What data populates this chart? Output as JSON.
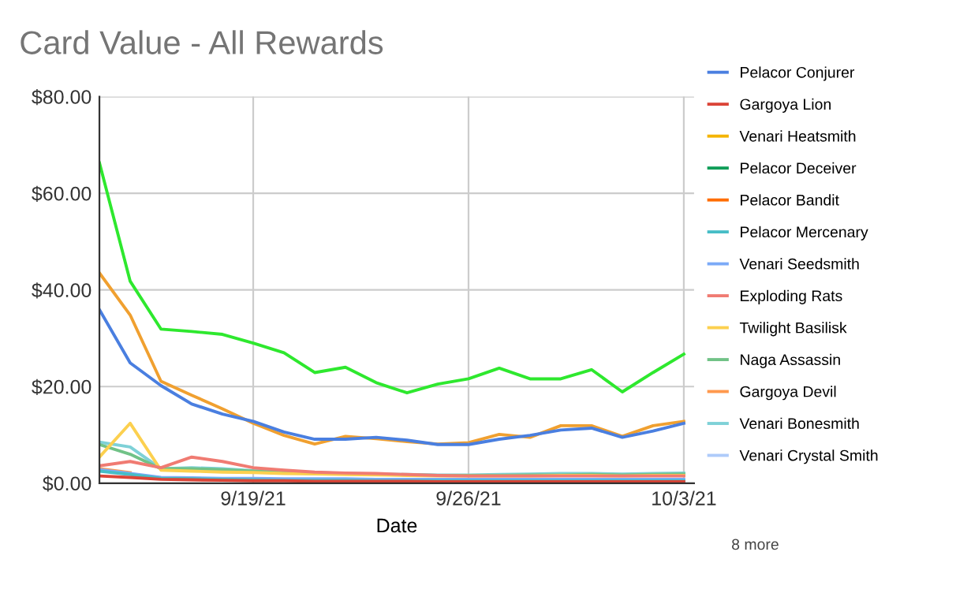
{
  "chart_data": {
    "type": "line",
    "title": "Card Value - All Rewards",
    "xlabel": "Date",
    "x": [
      "2021-09-14",
      "2021-09-15",
      "2021-09-16",
      "2021-09-17",
      "2021-09-18",
      "2021-09-19",
      "2021-09-20",
      "2021-09-21",
      "2021-09-22",
      "2021-09-23",
      "2021-09-24",
      "2021-09-25",
      "2021-09-26",
      "2021-09-27",
      "2021-09-28",
      "2021-09-29",
      "2021-09-30",
      "2021-10-01",
      "2021-10-02",
      "2021-10-03"
    ],
    "xlim": [
      "2021-09-14",
      "2021-10-03T08:00"
    ],
    "xticks": [
      {
        "value": "2021-09-19",
        "label": "9/19/21"
      },
      {
        "value": "2021-09-26",
        "label": "9/26/21"
      },
      {
        "value": "2021-10-03",
        "label": "10/3/21"
      }
    ],
    "ylim": [
      0,
      80
    ],
    "yticks": [
      {
        "value": 0,
        "label": "$0.00"
      },
      {
        "value": 20,
        "label": "$20.00"
      },
      {
        "value": 40,
        "label": "$40.00"
      },
      {
        "value": 60,
        "label": "$60.00"
      },
      {
        "value": 80,
        "label": "$80.00"
      }
    ],
    "grid": true,
    "legend": "right",
    "marker": "none",
    "line_style": "solid",
    "annotations": [
      "8 more"
    ],
    "series": [
      {
        "name": "Pelacor Conjurer",
        "color": "#4a7fe0",
        "values": [
          35.9,
          24.9,
          20.2,
          16.4,
          14.3,
          12.8,
          10.6,
          9.1,
          9.1,
          9.5,
          8.9,
          8.0,
          8.0,
          9.1,
          9.9,
          11.0,
          11.4,
          9.5,
          10.8,
          12.4
        ]
      },
      {
        "name": "Gargoya Lion",
        "color": "#db4437",
        "values": [
          1.5,
          1.2,
          0.8,
          0.7,
          0.6,
          0.5,
          0.5,
          0.4,
          0.4,
          0.4,
          0.4,
          0.3,
          0.3,
          0.3,
          0.3,
          0.3,
          0.3,
          0.3,
          0.3,
          0.3
        ]
      },
      {
        "name": "Venari Heatsmith",
        "color": "#f4b400",
        "values": [
          null,
          null,
          null,
          null,
          null,
          null,
          null,
          null,
          null,
          null,
          null,
          null,
          null,
          null,
          null,
          null,
          null,
          null,
          null,
          null
        ]
      },
      {
        "name": "Pelacor Deceiver",
        "color": "#0f9d58",
        "values": [
          null,
          null,
          null,
          null,
          null,
          null,
          null,
          null,
          null,
          null,
          null,
          null,
          null,
          null,
          null,
          null,
          null,
          null,
          null,
          null
        ]
      },
      {
        "name": "Pelacor Bandit",
        "color": "#ff6d00",
        "values": [
          null,
          null,
          null,
          null,
          null,
          null,
          null,
          null,
          null,
          null,
          null,
          null,
          null,
          null,
          null,
          null,
          null,
          null,
          null,
          null
        ]
      },
      {
        "name": "Pelacor Mercenary",
        "color": "#46bdc6",
        "values": [
          2.5,
          1.8,
          1.0,
          0.9,
          0.8,
          0.7,
          0.6,
          0.6,
          0.6,
          0.5,
          0.5,
          0.5,
          0.5,
          0.5,
          0.5,
          0.5,
          0.5,
          0.5,
          0.5,
          0.5
        ]
      },
      {
        "name": "Venari Seedsmith",
        "color": "#7baaf7",
        "values": [
          2.8,
          2.0,
          1.2,
          1.1,
          1.0,
          1.0,
          0.9,
          0.9,
          0.9,
          0.8,
          0.8,
          0.8,
          0.8,
          0.8,
          0.8,
          0.8,
          0.8,
          0.8,
          0.8,
          0.8
        ]
      },
      {
        "name": "Exploding Rats",
        "color": "#f07b72",
        "values": [
          3.6,
          4.5,
          3.2,
          5.4,
          4.5,
          3.2,
          2.7,
          2.3,
          2.1,
          2.0,
          1.8,
          1.6,
          1.5,
          1.5,
          1.5,
          1.5,
          1.5,
          1.5,
          1.5,
          1.5
        ]
      },
      {
        "name": "Twilight Basilisk",
        "color": "#fcd04f",
        "values": [
          5.4,
          12.4,
          2.7,
          2.5,
          2.3,
          2.2,
          2.0,
          1.9,
          1.8,
          1.7,
          1.6,
          1.5,
          1.5,
          1.5,
          1.5,
          1.6,
          1.6,
          1.5,
          1.6,
          1.6
        ]
      },
      {
        "name": "Naga Assassin",
        "color": "#71c287",
        "values": [
          8.0,
          6.0,
          3.0,
          3.0,
          2.8,
          2.5,
          2.2,
          2.0,
          1.9,
          1.8,
          1.7,
          1.6,
          1.6,
          1.6,
          1.7,
          1.7,
          1.8,
          1.7,
          1.8,
          1.9
        ]
      },
      {
        "name": "Gargoya Devil",
        "color": "#ff994d",
        "values": [
          3.0,
          2.2,
          null,
          null,
          null,
          null,
          null,
          null,
          null,
          null,
          null,
          null,
          null,
          null,
          null,
          null,
          null,
          null,
          null,
          null
        ]
      },
      {
        "name": "Venari Bonesmith",
        "color": "#7ed1d7",
        "values": [
          8.5,
          7.5,
          3.0,
          3.2,
          3.0,
          2.6,
          2.4,
          2.2,
          2.0,
          1.9,
          1.8,
          1.7,
          1.7,
          1.8,
          1.9,
          2.0,
          2.0,
          1.9,
          2.0,
          2.1
        ]
      },
      {
        "name": "Venari Crystal Smith",
        "color": "#aecbfa",
        "values": [
          null,
          null,
          null,
          null,
          null,
          null,
          null,
          null,
          null,
          null,
          null,
          null,
          null,
          null,
          null,
          null,
          null,
          null,
          null,
          null
        ]
      },
      {
        "color": "#2ee82e",
        "values": [
          66.3,
          41.8,
          31.9,
          31.4,
          30.8,
          29.0,
          27.0,
          22.9,
          24.0,
          20.8,
          18.7,
          20.5,
          21.6,
          23.8,
          21.6,
          21.6,
          23.5,
          18.9,
          22.9,
          26.7
        ]
      },
      {
        "color": "#f0a030",
        "values": [
          43.5,
          34.8,
          21.1,
          18.2,
          15.4,
          12.4,
          9.9,
          8.1,
          9.7,
          9.2,
          8.6,
          8.1,
          8.4,
          10.1,
          9.5,
          11.9,
          11.9,
          9.7,
          11.9,
          12.8
        ]
      }
    ]
  }
}
